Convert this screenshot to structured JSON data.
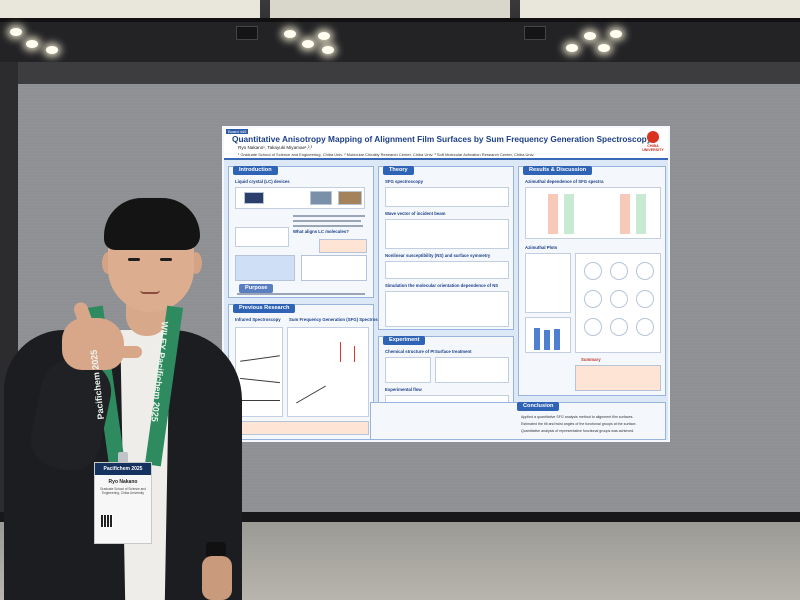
{
  "poster": {
    "booth_number": "Board 445",
    "title": "Quantitative Anisotropy Mapping of Alignment Film Surfaces by Sum Frequency Generation Spectroscopy",
    "authors": "Ryo Nakano¹, Takayuki Miyamae¹,²,³",
    "affiliations": "¹ Graduate School of Science and Engineering, Chiba Univ. ² Molecular Chirality Research Center, Chiba Univ. ³ Soft Molecular Activation Research Center, Chiba Univ.",
    "logo_text": "CHIBA UNIVERSITY",
    "sections": {
      "introduction": "Introduction",
      "intro_sub1": "Liquid crystal (LC) devices",
      "intro_sub2": "What aligns LC molecules?",
      "purpose": "Purpose",
      "previous_research": "Previous Research",
      "prev_sub1": "Infrared Spectroscopy",
      "prev_sub2": "Sum Frequency Generation (SFG) Spectroscopy",
      "theory": "Theory",
      "theory_sub1": "SFG spectroscopy",
      "theory_sub2": "Wave vector of incident beam",
      "theory_sub3": "Nonlinear susceptibility (NS) and surface symmetry",
      "theory_sub4": "Simulation the molecular orientation dependence of NS",
      "experiment": "Experiment",
      "exp_sub1": "Chemical structure of PI",
      "exp_sub2": "Surface treatment",
      "exp_sub3": "Experimental flow",
      "results": "Results & Discussion",
      "res_sub1": "Azimuthal dependence of SFG spectra",
      "res_sub2": "Azimuthal Plots",
      "res_sub3": "Summary",
      "conclusion": "Conclusion"
    },
    "conclusion_lines": [
      "Applied a quantitative SFG analysis method to alignment film surfaces.",
      "Estimated the tilt and twist angles of the functional groups at the surface.",
      "Quantitative analysis of representative functional groups was achieved."
    ]
  },
  "badge": {
    "banner": "Pacifichem 2025",
    "name": "Ryo Nakano",
    "affiliation": "Graduate School of Science and Engineering, Chiba University"
  },
  "lanyard": {
    "left_text": "Pacifichem 2025",
    "right_text": "WILEY  Pacifichem 2025"
  }
}
